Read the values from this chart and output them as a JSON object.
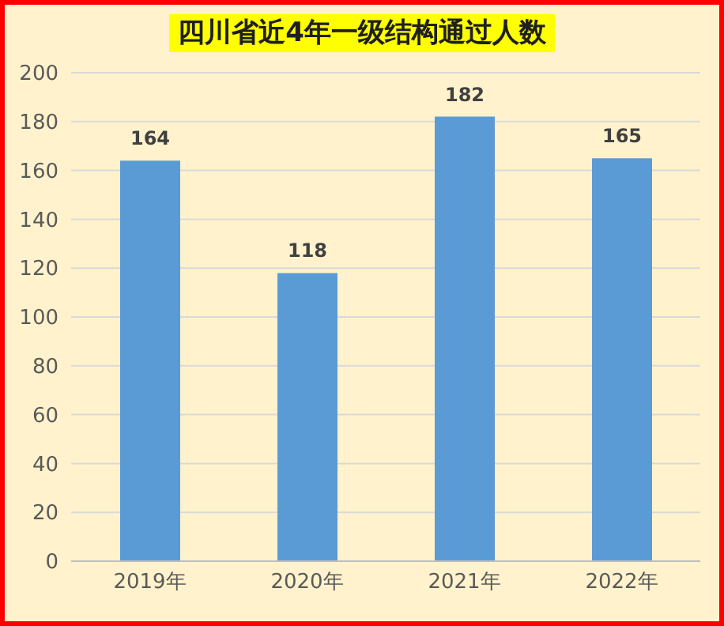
{
  "chart_data": {
    "type": "bar",
    "title": "四川省近4年一级结构通过人数",
    "categories": [
      "2019年",
      "2020年",
      "2021年",
      "2022年"
    ],
    "values": [
      164,
      118,
      182,
      165
    ],
    "color": "#5b9bd5",
    "ylim": [
      0,
      200
    ],
    "yticks": [
      0,
      20,
      40,
      60,
      80,
      100,
      120,
      140,
      160,
      180,
      200
    ],
    "grid": "y",
    "data_labels": true
  }
}
